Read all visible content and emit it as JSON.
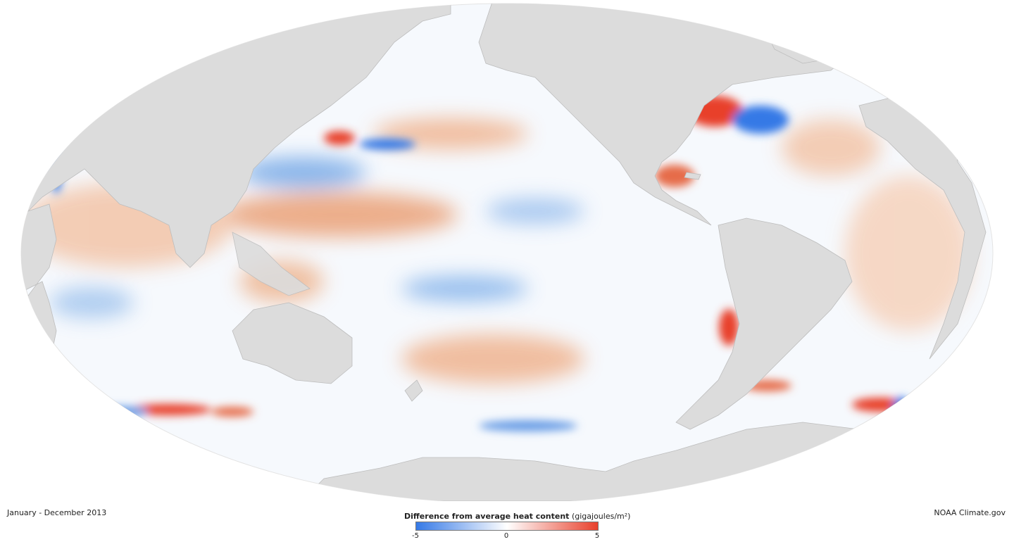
{
  "period_label": "January - December 2013",
  "credit": "NOAA Climate.gov",
  "legend": {
    "title": "Difference from average heat content",
    "unit": "(gigajoules/m²)",
    "ticks": [
      "-5",
      "0",
      "5"
    ],
    "colors": {
      "negative": "#3579e6",
      "zero": "#ffffff",
      "positive": "#e8412c"
    }
  },
  "map": {
    "land_color": "#dcdcdc",
    "coast_color": "#bdbdbd",
    "ocean_neutral_color": "#f6f9fd",
    "warm_color": "#eba67f",
    "cool_color": "#7faee8"
  }
}
